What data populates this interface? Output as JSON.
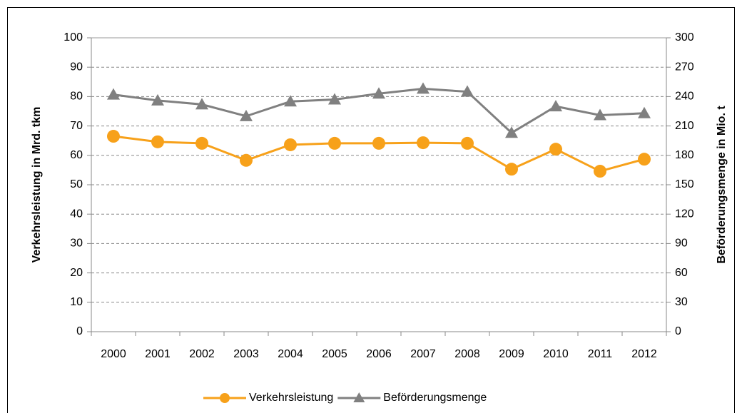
{
  "chart_data": {
    "type": "line",
    "categories": [
      "2000",
      "2001",
      "2002",
      "2003",
      "2004",
      "2005",
      "2006",
      "2007",
      "2008",
      "2009",
      "2010",
      "2011",
      "2012"
    ],
    "y_label": "Verkehrsleistung in Mrd. tkm",
    "y2_label": "Beförderungsmenge in Mio. t",
    "ylim": [
      0,
      100
    ],
    "yticks": [
      0,
      10,
      20,
      30,
      40,
      50,
      60,
      70,
      80,
      90,
      100
    ],
    "y2lim": [
      0,
      300
    ],
    "y2ticks": [
      0,
      30,
      60,
      90,
      120,
      150,
      180,
      210,
      240,
      270,
      300
    ],
    "grid": true,
    "legend": "bottom",
    "series": [
      {
        "name": "Verkehrsleistung",
        "color": "#f7a11a",
        "marker": "circle",
        "values": [
          66.5,
          64.6,
          64.1,
          58.3,
          63.6,
          64.1,
          64.1,
          64.3,
          64.1,
          55.3,
          62.1,
          54.6,
          58.7
        ]
      },
      {
        "name": "Beförderungsmenge",
        "color": "#808080",
        "marker": "triangle",
        "axis": "y2",
        "values": [
          242,
          236,
          232,
          220,
          235,
          237,
          243,
          248,
          245,
          203,
          230,
          221,
          223
        ]
      }
    ]
  }
}
